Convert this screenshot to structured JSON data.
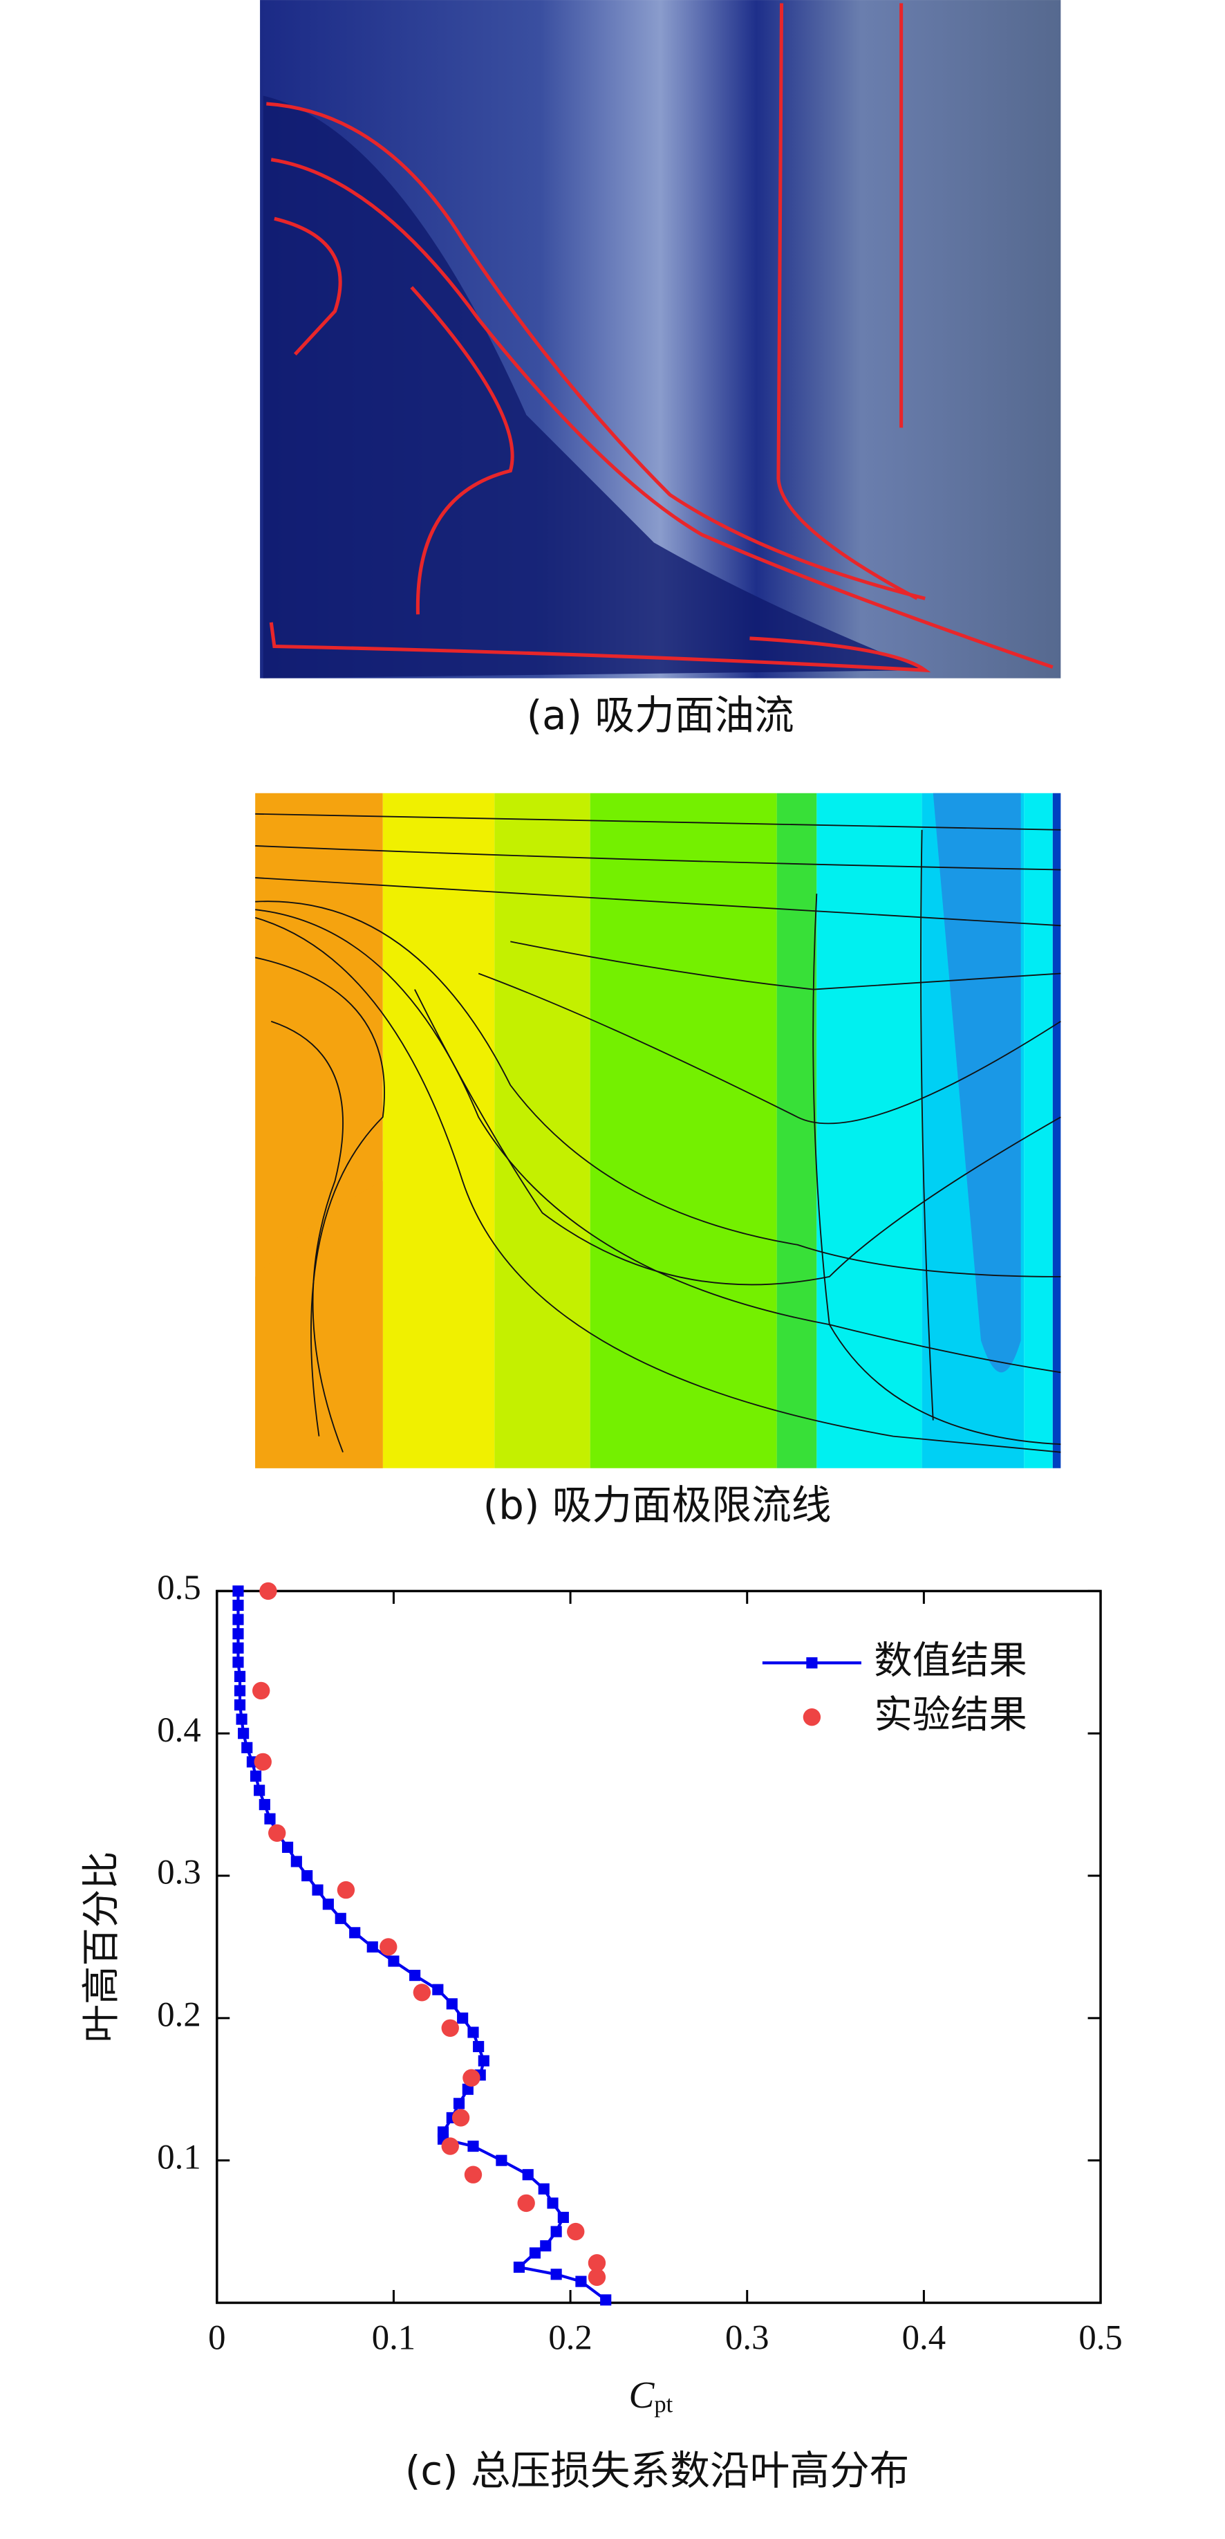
{
  "panels": [
    {
      "caption": "(a) 吸力面油流"
    },
    {
      "caption": "(b) 吸力面极限流线"
    }
  ],
  "chart_data": {
    "type": "line",
    "caption": "(c) 总压损失系数沿叶高分布",
    "xlabel": "C",
    "xlabel_sub": "pt",
    "ylabel": "叶高百分比",
    "xlim": [
      0,
      0.5
    ],
    "xticks": [
      0,
      0.1,
      0.2,
      0.3,
      0.4,
      0.5
    ],
    "ylim": [
      0,
      0.5
    ],
    "yticks": [
      0.1,
      0.2,
      0.3,
      0.4,
      0.5
    ],
    "legend": "upper right",
    "series": [
      {
        "name": "数值结果",
        "type": "line",
        "color": "#0000ee",
        "x": [
          0.012,
          0.012,
          0.012,
          0.012,
          0.012,
          0.012,
          0.013,
          0.013,
          0.013,
          0.014,
          0.015,
          0.017,
          0.02,
          0.022,
          0.024,
          0.027,
          0.03,
          0.034,
          0.04,
          0.045,
          0.051,
          0.057,
          0.063,
          0.07,
          0.078,
          0.088,
          0.1,
          0.112,
          0.125,
          0.133,
          0.139,
          0.145,
          0.148,
          0.151,
          0.149,
          0.142,
          0.137,
          0.133,
          0.128,
          0.128,
          0.145,
          0.161,
          0.176,
          0.185,
          0.19,
          0.196,
          0.192,
          0.186,
          0.18,
          0.171,
          0.192,
          0.206,
          0.22
        ],
        "values": [
          0.5,
          0.49,
          0.48,
          0.47,
          0.46,
          0.45,
          0.44,
          0.43,
          0.42,
          0.41,
          0.4,
          0.39,
          0.38,
          0.37,
          0.36,
          0.35,
          0.34,
          0.33,
          0.32,
          0.31,
          0.3,
          0.29,
          0.28,
          0.27,
          0.26,
          0.25,
          0.24,
          0.23,
          0.22,
          0.21,
          0.2,
          0.19,
          0.18,
          0.17,
          0.16,
          0.15,
          0.14,
          0.13,
          0.12,
          0.115,
          0.11,
          0.1,
          0.09,
          0.08,
          0.07,
          0.06,
          0.05,
          0.04,
          0.035,
          0.025,
          0.02,
          0.015,
          0.002
        ]
      },
      {
        "name": "实验结果",
        "type": "scatter",
        "color": "#ee4444",
        "x": [
          0.029,
          0.025,
          0.026,
          0.034,
          0.073,
          0.097,
          0.116,
          0.132,
          0.144,
          0.138,
          0.132,
          0.145,
          0.175,
          0.203,
          0.215,
          0.215
        ],
        "values": [
          0.5,
          0.43,
          0.38,
          0.33,
          0.29,
          0.25,
          0.218,
          0.193,
          0.158,
          0.13,
          0.11,
          0.09,
          0.07,
          0.05,
          0.028,
          0.018
        ]
      }
    ]
  }
}
